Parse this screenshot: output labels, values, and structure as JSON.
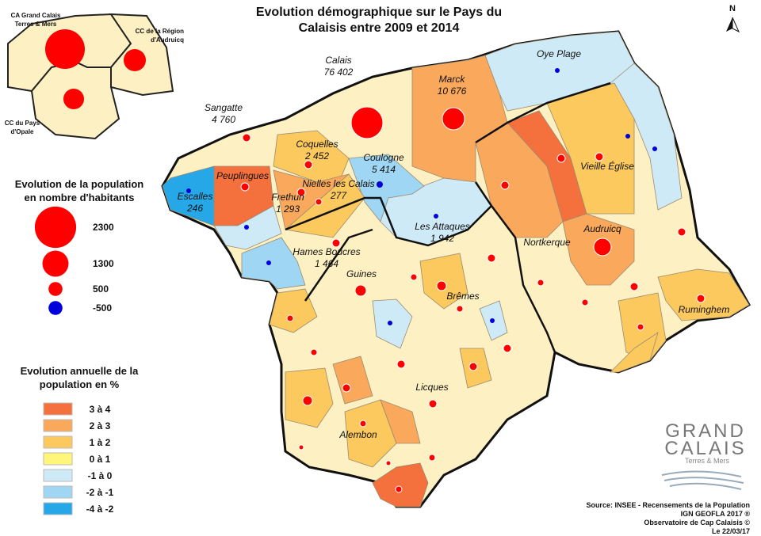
{
  "title": [
    "Evolution démographique sur le Pays du",
    "Calaisis entre 2009 et 2014"
  ],
  "north": "N",
  "inset": {
    "labels": [
      [
        "CA Grand Calais",
        "Terres & Mers"
      ],
      [
        "CC de la Région",
        "d'Audruicq"
      ],
      [
        "CC du Pays",
        "d'Opale"
      ]
    ]
  },
  "legend_size": {
    "title": [
      "Evolution de la population",
      "en nombre d'habitants"
    ],
    "items": [
      {
        "value": 2300,
        "color": "#ff0000"
      },
      {
        "value": 1300,
        "color": "#ff0000"
      },
      {
        "value": 500,
        "color": "#ff0000"
      },
      {
        "value": -500,
        "color": "#0000dd"
      }
    ]
  },
  "legend_color": {
    "title": [
      "Evolution annuelle de la",
      "population en %"
    ],
    "classes": [
      {
        "label": "3 à 4",
        "color": "#f4703c"
      },
      {
        "label": "2 à 3",
        "color": "#f9a85c"
      },
      {
        "label": "1 à 2",
        "color": "#fbc95e"
      },
      {
        "label": "0 à 1",
        "color": "#fff67a"
      },
      {
        "label": "-1 à 0",
        "color": "#cfeaf7"
      },
      {
        "label": "-2 à -1",
        "color": "#9fd6f3"
      },
      {
        "label": "-4 à -2",
        "color": "#26a8e8"
      }
    ]
  },
  "places": [
    {
      "name": "Calais",
      "population": "76 402"
    },
    {
      "name": "Sangatte",
      "population": "4 760"
    },
    {
      "name": "Marck",
      "population": "10 676"
    },
    {
      "name": "Oye Plage"
    },
    {
      "name": "Coquelles",
      "population": "2 452"
    },
    {
      "name": "Coulogne",
      "population": "5 414"
    },
    {
      "name": "Peuplingues"
    },
    {
      "name": "Frethun",
      "population": "1 293"
    },
    {
      "name": "Nielles les Calais",
      "population": "277"
    },
    {
      "name": "Escalles",
      "population": "246"
    },
    {
      "name": "Les Attaques",
      "population": "1 942"
    },
    {
      "name": "Hames Boucres",
      "population": "1 464"
    },
    {
      "name": "Guines"
    },
    {
      "name": "Brêmes"
    },
    {
      "name": "Nortkerque"
    },
    {
      "name": "Audruicq"
    },
    {
      "name": "Vieille Église"
    },
    {
      "name": "Ruminghem"
    },
    {
      "name": "Licques"
    },
    {
      "name": "Alembon"
    }
  ],
  "logo": {
    "name": [
      "GRAND",
      "CALAIS"
    ],
    "tagline": "Terres & Mers"
  },
  "source": [
    "Source: INSEE - Recensements de la Population",
    "IGN GEOFLA 2017 ®",
    "Observatoire de Cap Calaisis ©",
    "Le 22/03/17"
  ]
}
